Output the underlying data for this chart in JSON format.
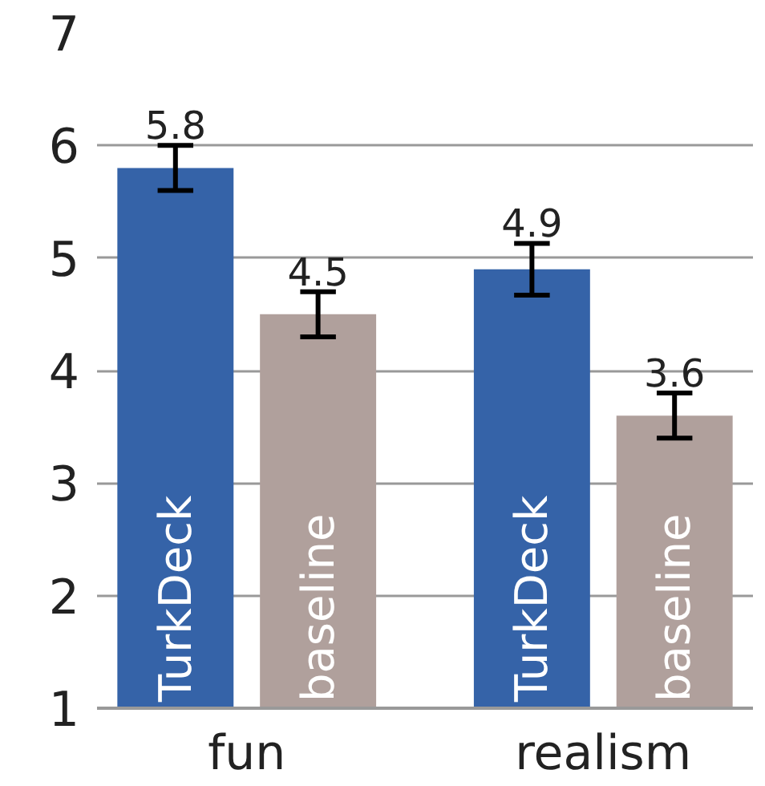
{
  "chart_data": {
    "type": "bar",
    "categories": [
      "fun",
      "realism"
    ],
    "series": [
      {
        "name": "TurkDeck",
        "color": "#3563a8",
        "values": [
          5.8,
          4.9
        ],
        "errors": [
          0.2,
          0.23
        ]
      },
      {
        "name": "baseline",
        "color": "#b0a09c",
        "values": [
          4.5,
          3.6
        ],
        "errors": [
          0.2,
          0.2
        ]
      }
    ],
    "ylim": [
      1,
      7
    ],
    "yticks": [
      1,
      2,
      3,
      4,
      5,
      6,
      7
    ],
    "grid": "y",
    "data_labels": true
  }
}
